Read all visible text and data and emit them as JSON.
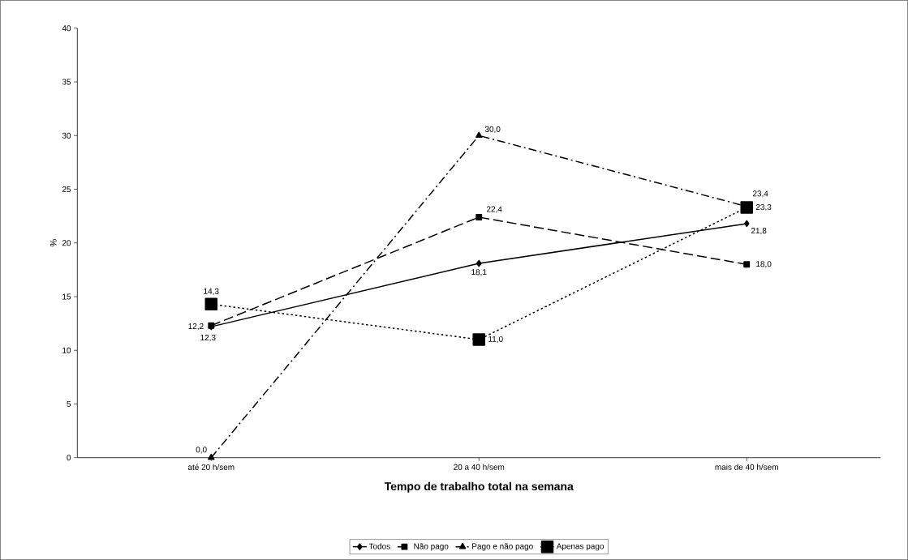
{
  "chart_data": {
    "type": "line",
    "xlabel": "Tempo de trabalho total na semana",
    "ylabel": "%",
    "categories": [
      "até 20 h/sem",
      "20 a 40 h/sem",
      "mais de 40 h/sem"
    ],
    "series": [
      {
        "name": "Todos",
        "color": "#000000",
        "values": [
          12.2,
          18.1,
          21.8
        ],
        "value_labels": [
          "12,2",
          "18,1",
          "21,8"
        ],
        "marker": "diamond",
        "line_style": "solid"
      },
      {
        "name": "Não pago",
        "color": "#000000",
        "values": [
          12.3,
          22.4,
          18.0
        ],
        "value_labels": [
          "12,3",
          "22,4",
          "18,0"
        ],
        "marker": "square",
        "line_style": "dashed"
      },
      {
        "name": "Pago e não pago",
        "color": "#000000",
        "values": [
          0.0,
          30.0,
          23.4
        ],
        "value_labels": [
          "0,0",
          "30,0",
          "23,4"
        ],
        "marker": "triangle",
        "line_style": "dashdot"
      },
      {
        "name": "Apenas pago",
        "color": "#000000",
        "values": [
          14.3,
          11.0,
          23.3
        ],
        "value_labels": [
          "14,3",
          "11,0",
          "23,3"
        ],
        "marker": "square",
        "line_style": "dotted"
      }
    ],
    "ylim": [
      0,
      40
    ],
    "yticks": [
      0,
      5,
      10,
      15,
      20,
      25,
      30,
      35,
      40
    ],
    "grid": false,
    "legend": "bottom"
  }
}
